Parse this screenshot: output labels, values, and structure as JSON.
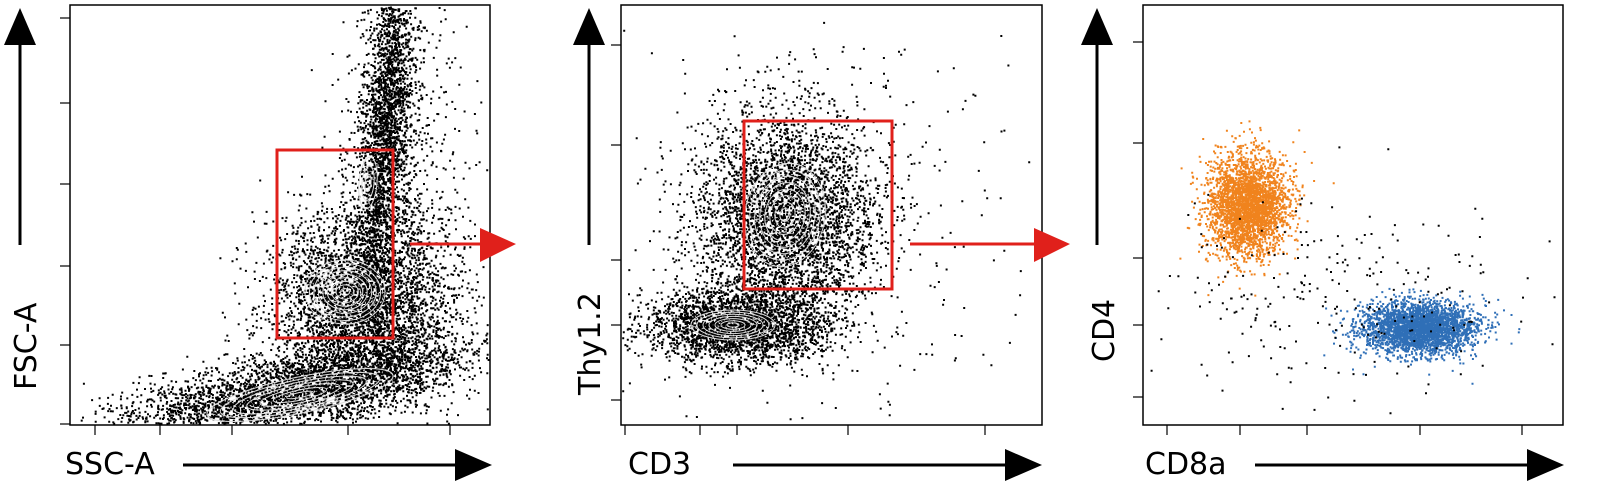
{
  "panels": [
    {
      "x_label": "SSC-A",
      "y_label": "FSC-A"
    },
    {
      "x_label": "CD3",
      "y_label": "Thy1.2"
    },
    {
      "x_label": "CD8a",
      "y_label": "CD4"
    }
  ]
}
